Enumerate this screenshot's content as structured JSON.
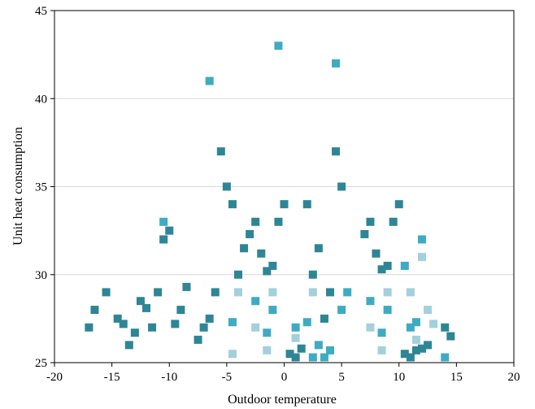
{
  "chart_data": {
    "type": "scatter",
    "title": "",
    "xlabel": "Outdoor temperature",
    "ylabel": "Unit heat consumption",
    "xlim": [
      -20,
      20
    ],
    "ylim": [
      25,
      45
    ],
    "x_ticks": [
      -20,
      -15,
      -10,
      -5,
      0,
      5,
      10,
      15,
      20
    ],
    "y_ticks": [
      25,
      30,
      35,
      40,
      45
    ],
    "grid": "horizontal",
    "legend": "none",
    "colors": [
      "#2e8595",
      "#3eabc3",
      "#a4cfdc"
    ],
    "series": [
      {
        "color": "#2e8595",
        "points": [
          [
            -17.0,
            27.0
          ],
          [
            -16.5,
            28.0
          ],
          [
            -15.5,
            29.0
          ],
          [
            -14.5,
            27.5
          ],
          [
            -14.0,
            27.2
          ],
          [
            -13.5,
            26.0
          ],
          [
            -13.0,
            26.7
          ],
          [
            -12.5,
            28.5
          ],
          [
            -12.0,
            28.1
          ],
          [
            -11.5,
            27.0
          ],
          [
            -11.0,
            29.0
          ],
          [
            -10.5,
            32.0
          ],
          [
            -10.0,
            32.5
          ],
          [
            -9.5,
            27.2
          ],
          [
            -9.0,
            28.0
          ],
          [
            -8.5,
            29.3
          ],
          [
            -7.5,
            26.3
          ],
          [
            -7.0,
            27.0
          ],
          [
            -6.5,
            27.5
          ],
          [
            -6.0,
            29.0
          ],
          [
            -5.5,
            37.0
          ],
          [
            -5.0,
            35.0
          ],
          [
            -4.5,
            34.0
          ],
          [
            -4.0,
            30.0
          ],
          [
            -3.5,
            31.5
          ],
          [
            -3.0,
            32.3
          ],
          [
            -2.5,
            33.0
          ],
          [
            -2.0,
            31.2
          ],
          [
            -1.5,
            30.2
          ],
          [
            -1.0,
            30.5
          ],
          [
            -0.5,
            33.0
          ],
          [
            0.0,
            34.0
          ],
          [
            0.5,
            25.5
          ],
          [
            1.0,
            25.3
          ],
          [
            1.5,
            25.8
          ],
          [
            2.0,
            34.0
          ],
          [
            2.5,
            30.0
          ],
          [
            3.0,
            31.5
          ],
          [
            3.5,
            27.5
          ],
          [
            4.0,
            29.0
          ],
          [
            4.5,
            37.0
          ],
          [
            5.0,
            35.0
          ],
          [
            7.0,
            32.3
          ],
          [
            7.5,
            33.0
          ],
          [
            8.0,
            31.2
          ],
          [
            8.5,
            30.3
          ],
          [
            9.0,
            30.5
          ],
          [
            9.5,
            33.0
          ],
          [
            10.0,
            34.0
          ],
          [
            10.5,
            25.5
          ],
          [
            11.0,
            25.3
          ],
          [
            11.5,
            25.7
          ],
          [
            12.0,
            25.8
          ],
          [
            12.5,
            26.0
          ],
          [
            14.0,
            27.0
          ],
          [
            14.5,
            26.5
          ]
        ]
      },
      {
        "color": "#3eabc3",
        "points": [
          [
            -10.5,
            33.0
          ],
          [
            -6.5,
            41.0
          ],
          [
            -4.5,
            27.3
          ],
          [
            -2.5,
            28.5
          ],
          [
            -1.5,
            26.7
          ],
          [
            -1.0,
            28.0
          ],
          [
            -0.5,
            43.0
          ],
          [
            1.0,
            27.0
          ],
          [
            2.0,
            27.3
          ],
          [
            2.5,
            25.3
          ],
          [
            3.0,
            26.0
          ],
          [
            3.5,
            25.3
          ],
          [
            4.0,
            25.7
          ],
          [
            4.5,
            42.0
          ],
          [
            5.0,
            28.0
          ],
          [
            5.5,
            29.0
          ],
          [
            7.5,
            28.5
          ],
          [
            8.5,
            26.7
          ],
          [
            9.0,
            28.0
          ],
          [
            10.5,
            30.5
          ],
          [
            11.0,
            27.0
          ],
          [
            11.5,
            27.3
          ],
          [
            12.0,
            32.0
          ],
          [
            14.0,
            25.3
          ]
        ]
      },
      {
        "color": "#a4cfdc",
        "points": [
          [
            -4.5,
            25.5
          ],
          [
            -4.0,
            29.0
          ],
          [
            -2.5,
            27.0
          ],
          [
            -1.5,
            25.7
          ],
          [
            -1.0,
            29.0
          ],
          [
            1.0,
            26.4
          ],
          [
            2.5,
            29.0
          ],
          [
            7.5,
            27.0
          ],
          [
            8.5,
            25.7
          ],
          [
            9.0,
            29.0
          ],
          [
            11.0,
            29.0
          ],
          [
            11.5,
            26.3
          ],
          [
            12.0,
            31.0
          ],
          [
            12.5,
            28.0
          ],
          [
            13.0,
            27.2
          ]
        ]
      }
    ]
  }
}
